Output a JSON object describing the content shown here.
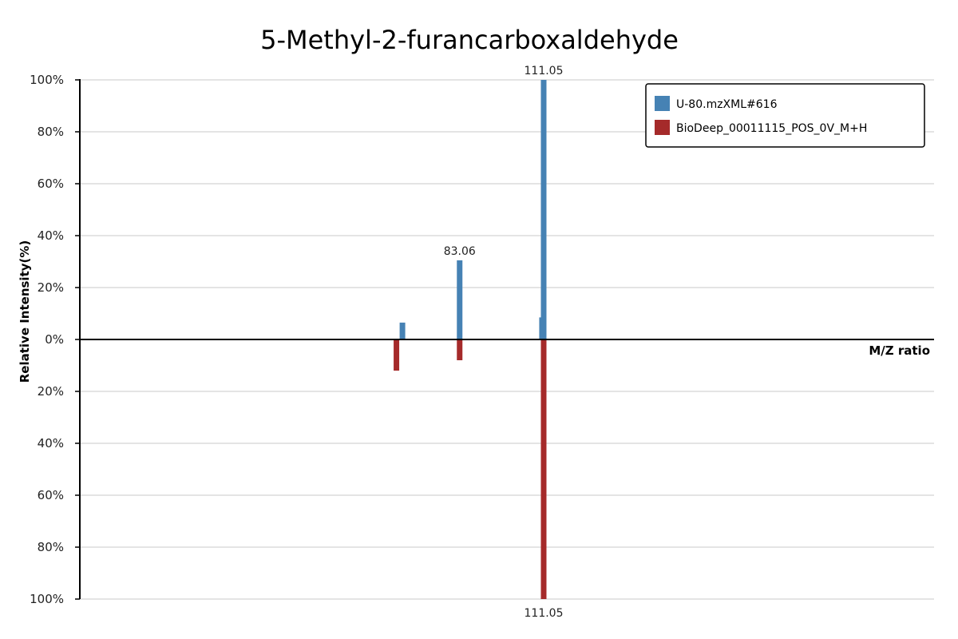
{
  "chart_data": {
    "type": "bar",
    "title": "5-Methyl-2-furancarboxaldehyde",
    "xlabel": "M/Z ratio",
    "ylabel": "Relative Intensity(%)",
    "ylim": [
      -100,
      100
    ],
    "y_ticks": [
      {
        "value": 100,
        "label": "100%"
      },
      {
        "value": 80,
        "label": "80%"
      },
      {
        "value": 60,
        "label": "60%"
      },
      {
        "value": 40,
        "label": "40%"
      },
      {
        "value": 20,
        "label": "20%"
      },
      {
        "value": 0,
        "label": "0%"
      },
      {
        "value": -20,
        "label": "20%"
      },
      {
        "value": -40,
        "label": "40%"
      },
      {
        "value": -60,
        "label": "60%"
      },
      {
        "value": -80,
        "label": "80%"
      },
      {
        "value": -100,
        "label": "100%"
      }
    ],
    "grid": true,
    "legend_position": "top-right",
    "series": [
      {
        "name": "U-80.mzXML#616",
        "color": "#4682b4",
        "direction": "up",
        "peaks": [
          {
            "mz": 64.0,
            "intensity": 6.5
          },
          {
            "mz": 83.06,
            "intensity": 30.5,
            "label": "83.06"
          },
          {
            "mz": 110.5,
            "intensity": 8.5
          },
          {
            "mz": 111.05,
            "intensity": 100,
            "label": "111.05"
          }
        ]
      },
      {
        "name": "BioDeep_00011115_POS_0V_M+H",
        "color": "#a52a2a",
        "direction": "down",
        "peaks": [
          {
            "mz": 62.0,
            "intensity": 12
          },
          {
            "mz": 83.06,
            "intensity": 8
          },
          {
            "mz": 111.05,
            "intensity": 100,
            "label": "111.05"
          }
        ]
      }
    ]
  }
}
